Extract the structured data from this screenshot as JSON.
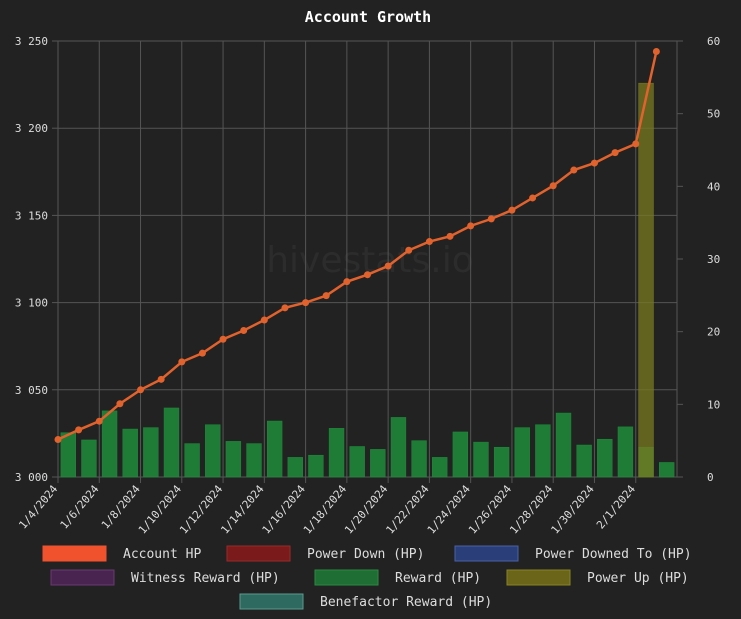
{
  "watermark": "hivestats.io",
  "colors": {
    "background": "#222222",
    "grid": "#555555",
    "axis_text": "#dddddd",
    "title": "#ffffff",
    "line": "#e2622d",
    "reward_bar": "#1e8c3a",
    "power_up_bar": "#7a7a20"
  },
  "chart_data": {
    "type": "bar+line",
    "title": "Account Growth",
    "x": [
      "1/4/2024",
      "1/5/2024",
      "1/6/2024",
      "1/7/2024",
      "1/8/2024",
      "1/9/2024",
      "1/10/2024",
      "1/11/2024",
      "1/12/2024",
      "1/13/2024",
      "1/14/2024",
      "1/15/2024",
      "1/16/2024",
      "1/17/2024",
      "1/18/2024",
      "1/19/2024",
      "1/20/2024",
      "1/21/2024",
      "1/22/2024",
      "1/23/2024",
      "1/24/2024",
      "1/25/2024",
      "1/26/2024",
      "1/27/2024",
      "1/28/2024",
      "1/29/2024",
      "1/30/2024",
      "1/31/2024",
      "2/1/2024",
      "2/2/2024"
    ],
    "x_tick_labels": [
      "1/4/2024",
      "1/6/2024",
      "1/8/2024",
      "1/10/2024",
      "1/12/2024",
      "1/14/2024",
      "1/16/2024",
      "1/18/2024",
      "1/20/2024",
      "1/22/2024",
      "1/24/2024",
      "1/26/2024",
      "1/28/2024",
      "1/30/2024",
      "2/1/2024"
    ],
    "y_left": {
      "ticks": [
        "3 000",
        "3 050",
        "3 100",
        "3 150",
        "3 200",
        "3 250"
      ],
      "min": 3000,
      "max": 3250
    },
    "y_right": {
      "ticks": [
        "0",
        "10",
        "20",
        "30",
        "40",
        "50",
        "60"
      ],
      "min": 0,
      "max": 60
    },
    "series": [
      {
        "name": "Account HP",
        "type": "line",
        "axis": "left",
        "color": "#e2622d",
        "values": [
          3021.5,
          3027,
          3032,
          3042,
          3050,
          3056,
          3066,
          3071,
          3079,
          3084,
          3090,
          3097,
          3100,
          3104,
          3112,
          3116,
          3121,
          3130,
          3135,
          3138,
          3144,
          3148,
          3153,
          3160,
          3167,
          3176,
          3180,
          3186,
          3191,
          3244
        ]
      },
      {
        "name": "Reward (HP)",
        "type": "bar",
        "axis": "right",
        "color": "#1e8c3a",
        "values": [
          6.1,
          5.1,
          9.1,
          6.6,
          6.8,
          9.5,
          4.6,
          7.2,
          4.9,
          4.6,
          7.7,
          2.7,
          3.0,
          6.7,
          4.2,
          3.8,
          8.2,
          5.0,
          2.7,
          6.2,
          4.8,
          4.1,
          6.8,
          7.2,
          8.8,
          4.4,
          5.2,
          6.9,
          4.1,
          2.0
        ]
      },
      {
        "name": "Power Up (HP)",
        "type": "bar",
        "axis": "right",
        "color": "#7a7a20",
        "values": [
          0,
          0,
          0,
          0,
          0,
          0,
          0,
          0,
          0,
          0,
          0,
          0,
          0,
          0,
          0,
          0,
          0,
          0,
          0,
          0,
          0,
          0,
          0,
          0,
          0,
          0,
          0,
          0,
          54.2,
          0
        ]
      }
    ],
    "legend": {
      "position": "bottom",
      "items": [
        {
          "label": "Account HP",
          "fill": "#f0522e",
          "stroke": "#f0522e"
        },
        {
          "label": "Power Down (HP)",
          "fill": "#7a1a1a",
          "stroke": "#9a2a2a"
        },
        {
          "label": "Power Downed To (HP)",
          "fill": "#2a3f7a",
          "stroke": "#4a60a8"
        },
        {
          "label": "Witness Reward (HP)",
          "fill": "#4a2450",
          "stroke": "#6a3a72"
        },
        {
          "label": "Reward (HP)",
          "fill": "#1f6e34",
          "stroke": "#2a8a42"
        },
        {
          "label": "Power Up (HP)",
          "fill": "#6b6519",
          "stroke": "#8a8322"
        },
        {
          "label": "Benefactor Reward (HP)",
          "fill": "#2f6a60",
          "stroke": "#5a9a90"
        }
      ]
    },
    "grid": true
  }
}
